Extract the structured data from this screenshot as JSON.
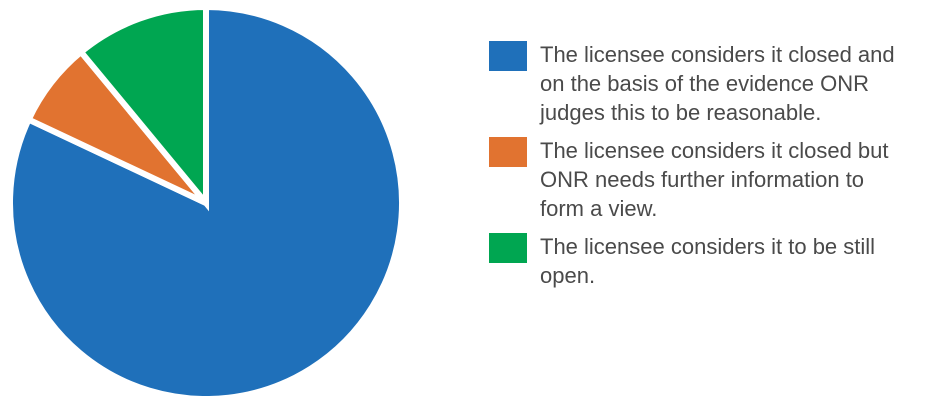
{
  "chart_data": {
    "type": "pie",
    "title": "",
    "slices": [
      {
        "label": "The licensee considers it closed and on the basis of the evidence ONR judges this to be reasonable.",
        "value": 82,
        "color": "#1F70BA"
      },
      {
        "label": "The licensee considers it closed but ONR needs further information to form a view.",
        "value": 7,
        "color": "#E17330"
      },
      {
        "label": "The licensee considers it to be still open.",
        "value": 11,
        "color": "#00A651"
      }
    ],
    "start_angle": "12 o'clock",
    "direction": "clockwise",
    "legend_position": "right"
  }
}
